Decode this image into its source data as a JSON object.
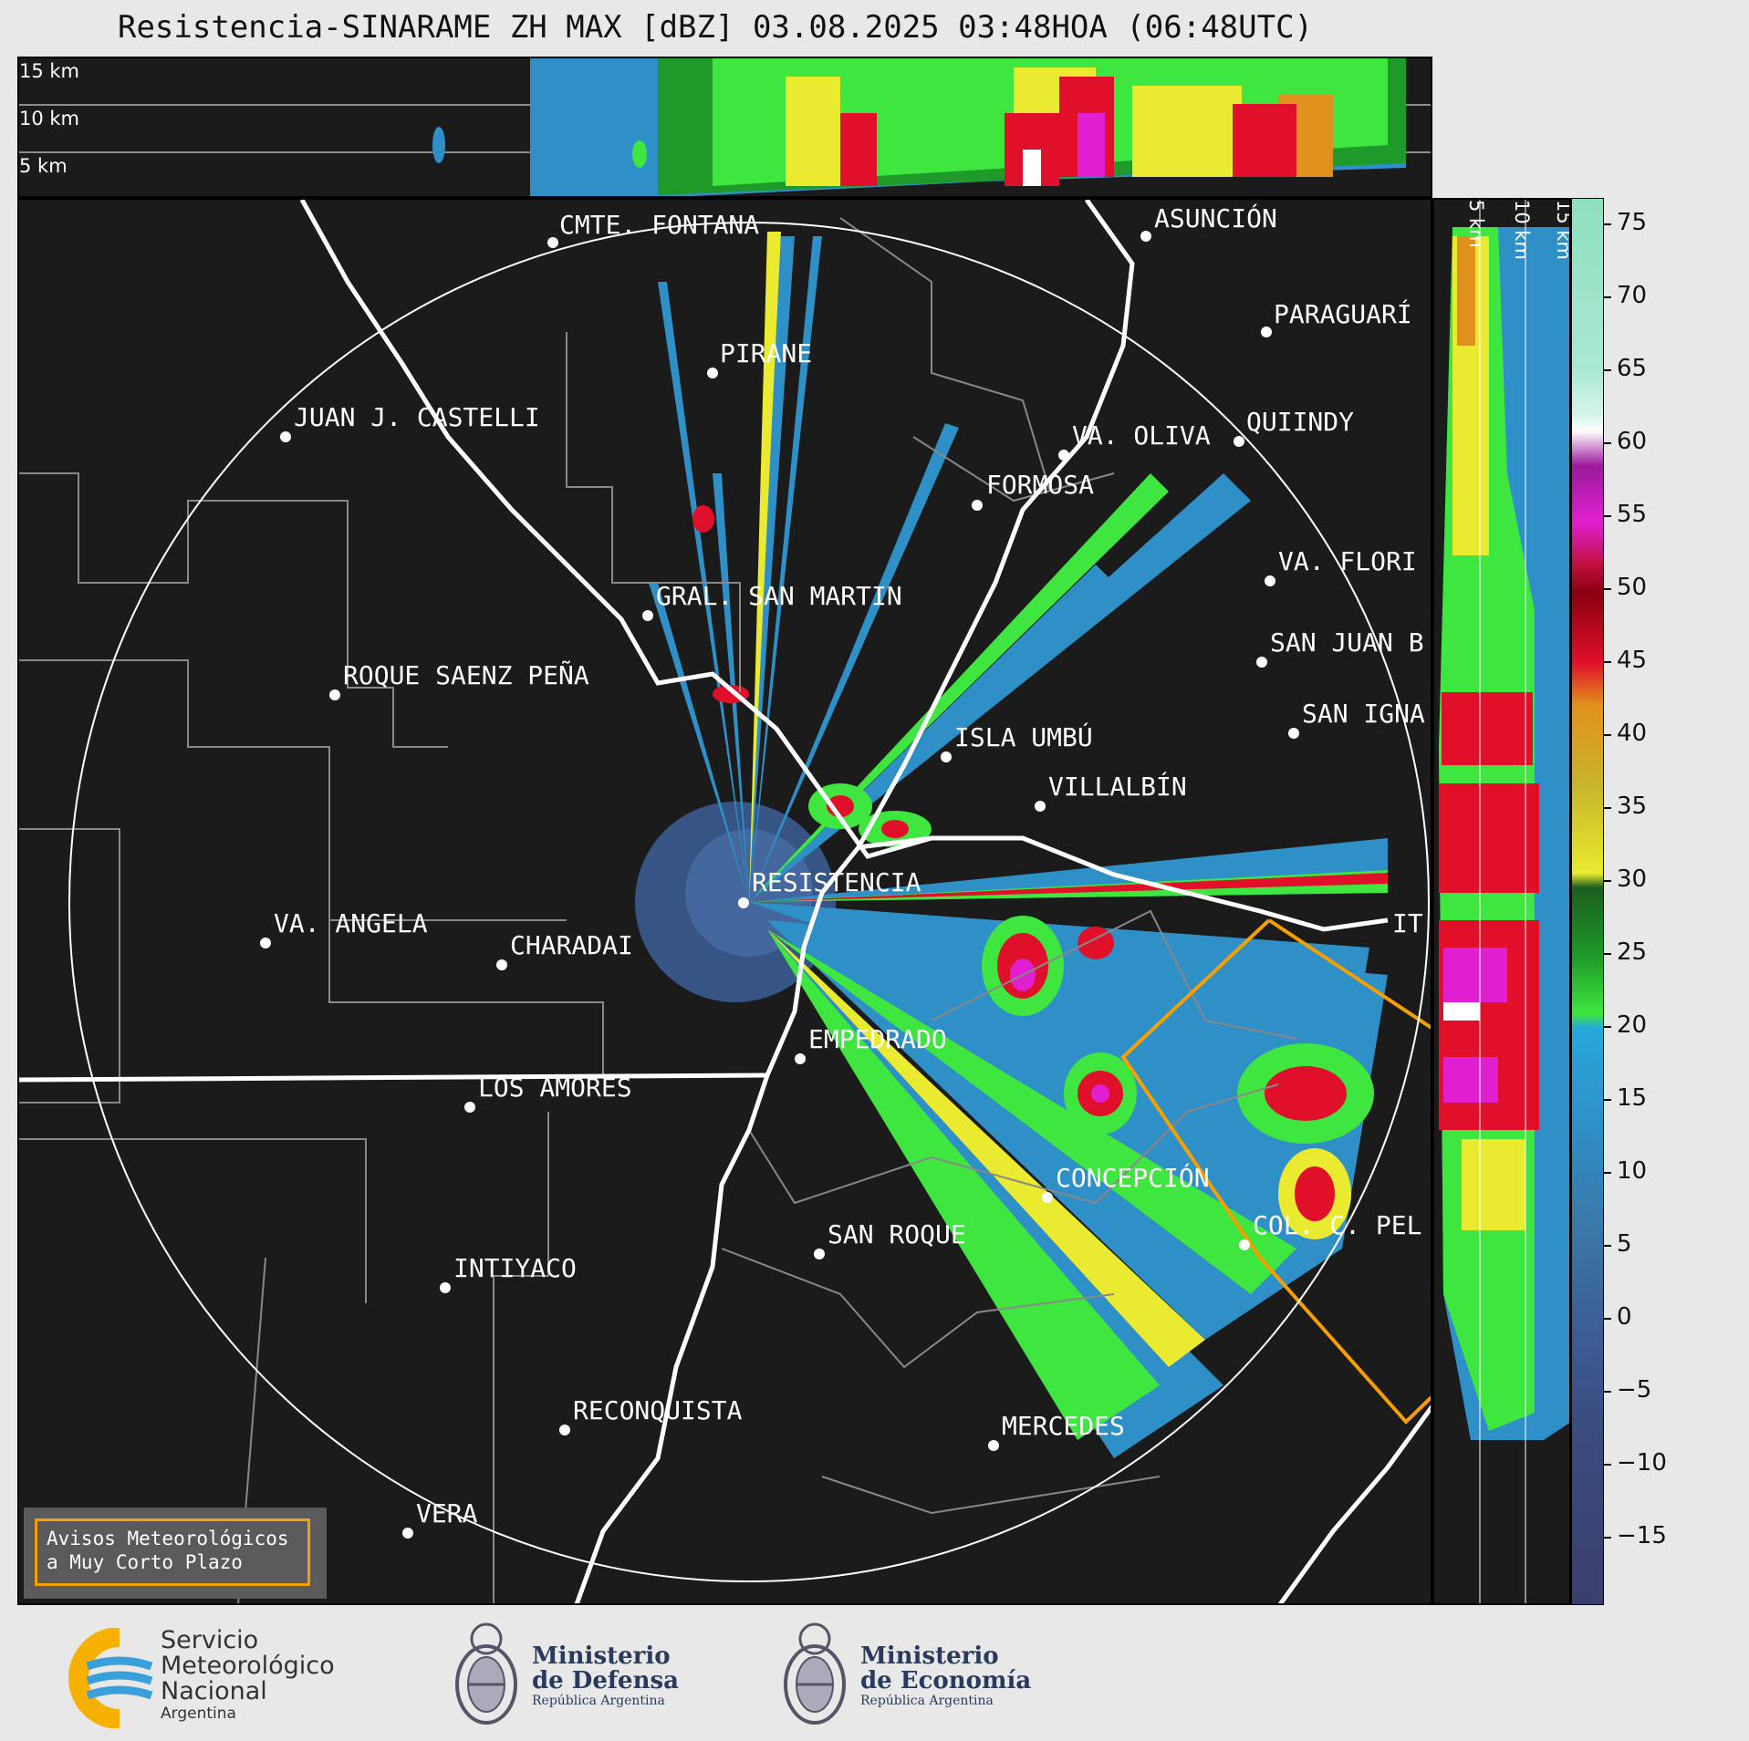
{
  "title": "Resistencia-SINARAME ZH MAX [dBZ] 03.08.2025 03:48HOA (06:48UTC)",
  "top_panel": {
    "altitude_labels": [
      "15 km",
      "10 km",
      "5 km"
    ]
  },
  "side_panel": {
    "altitude_labels": [
      "5 km",
      "10 km",
      "15 km"
    ]
  },
  "colorbar": {
    "ticks": [
      "75",
      "70",
      "65",
      "60",
      "55",
      "50",
      "45",
      "40",
      "35",
      "30",
      "25",
      "20",
      "15",
      "10",
      "5",
      "0",
      "−5",
      "−10",
      "−15"
    ],
    "colors": {
      "very_low": "#3a3f6e",
      "low": "#3c5f96",
      "light": "#2f8fc7",
      "cyan": "#27a8dc",
      "green_light": "#3fe63f",
      "green": "#1f9a2a",
      "green_dark": "#1b5e1e",
      "yellow": "#eaea30",
      "olive": "#c8b72c",
      "orange": "#e0901c",
      "red": "#e0102a",
      "dark_red": "#9a0010",
      "magenta": "#e020d0",
      "purple": "#8a1a8a",
      "white": "#ffffff",
      "mint": "#8fe0c0"
    }
  },
  "cities": [
    {
      "name": "CMTE. FONTANA"
    },
    {
      "name": "ASUNCIÓN"
    },
    {
      "name": "PARAGUARÍ"
    },
    {
      "name": "PIRANE"
    },
    {
      "name": "JUAN J. CASTELLI"
    },
    {
      "name": "VA. OLIVA"
    },
    {
      "name": "QUIINDY"
    },
    {
      "name": "FORMOSA"
    },
    {
      "name": "VA. FLORI"
    },
    {
      "name": "GRAL. SAN MARTIN"
    },
    {
      "name": "SAN JUAN B"
    },
    {
      "name": "ROQUE SAENZ PEÑA"
    },
    {
      "name": "SAN IGNA"
    },
    {
      "name": "ISLA UMBÚ"
    },
    {
      "name": "VILLALBÍN"
    },
    {
      "name": "RESISTENCIA"
    },
    {
      "name": "VA. ANGELA"
    },
    {
      "name": "CHARADAI"
    },
    {
      "name": "IT"
    },
    {
      "name": "EMPEDRADO"
    },
    {
      "name": "LOS AMORES"
    },
    {
      "name": "CONCEPCIÓN"
    },
    {
      "name": "SAN ROQUE"
    },
    {
      "name": "COL. C. PEL"
    },
    {
      "name": "INTIYACO"
    },
    {
      "name": "RECONQUISTA"
    },
    {
      "name": "MERCEDES"
    },
    {
      "name": "VERA"
    }
  ],
  "warning_box": {
    "line1": "Avisos Meteorológicos",
    "line2": "a Muy Corto Plazo"
  },
  "logos": {
    "smn": {
      "line1": "Servicio",
      "line2": "Meteorológico",
      "line3": "Nacional",
      "line4": "Argentina"
    },
    "defensa": {
      "line1": "Ministerio",
      "line2": "de Defensa",
      "line3": "República Argentina"
    },
    "economia": {
      "line1": "Ministerio",
      "line2": "de Economía",
      "line3": "República Argentina"
    }
  }
}
